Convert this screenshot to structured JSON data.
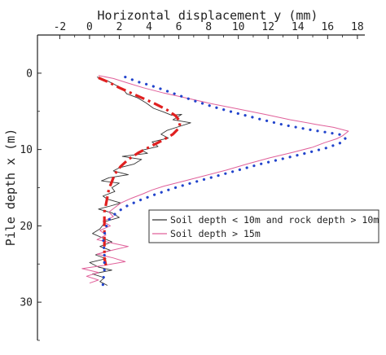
{
  "chart_data": {
    "type": "line",
    "xlabel": "Horizontal displacement y (mm)",
    "ylabel": "Pile depth x (m)",
    "xlim": [
      -3.5,
      18.5
    ],
    "ylim": [
      -5,
      35
    ],
    "x_ticks": [
      -2,
      0,
      2,
      4,
      6,
      8,
      10,
      12,
      14,
      16,
      18
    ],
    "y_ticks": [
      0,
      10,
      20,
      30
    ],
    "x_axis_position": "top",
    "y_axis_inverted": true,
    "legend_placement": "center-right",
    "series": [
      {
        "name": "Soil depth < 10m and rock depth > 10m",
        "style": "solid",
        "color": "#333333",
        "points": [
          [
            0.5,
            0.5
          ],
          [
            1.2,
            1.0
          ],
          [
            1.8,
            1.6
          ],
          [
            2.3,
            2.2
          ],
          [
            2.5,
            2.7
          ],
          [
            3.2,
            3.2
          ],
          [
            3.8,
            3.9
          ],
          [
            4.3,
            4.6
          ],
          [
            5.0,
            5.1
          ],
          [
            5.5,
            5.5
          ],
          [
            6.2,
            5.4
          ],
          [
            5.6,
            6.1
          ],
          [
            6.8,
            6.5
          ],
          [
            6.0,
            7.0
          ],
          [
            5.2,
            7.5
          ],
          [
            4.8,
            8.0
          ],
          [
            5.3,
            8.5
          ],
          [
            4.2,
            9.0
          ],
          [
            4.6,
            9.6
          ],
          [
            3.5,
            10.1
          ],
          [
            3.9,
            10.5
          ],
          [
            2.2,
            10.9
          ],
          [
            3.5,
            11.3
          ],
          [
            3.0,
            11.9
          ],
          [
            2.0,
            12.4
          ],
          [
            1.6,
            12.8
          ],
          [
            2.6,
            13.3
          ],
          [
            1.3,
            13.7
          ],
          [
            0.8,
            14.1
          ],
          [
            2.0,
            14.4
          ],
          [
            1.5,
            15.0
          ],
          [
            1.7,
            15.5
          ],
          [
            0.9,
            16.1
          ],
          [
            1.2,
            16.5
          ],
          [
            2.1,
            17.0
          ],
          [
            1.4,
            17.4
          ],
          [
            0.6,
            17.8
          ],
          [
            1.5,
            18.3
          ],
          [
            2.0,
            18.9
          ],
          [
            1.1,
            19.4
          ],
          [
            0.9,
            19.9
          ],
          [
            0.7,
            20.4
          ],
          [
            0.2,
            21.0
          ],
          [
            0.9,
            21.6
          ],
          [
            1.5,
            22.1
          ],
          [
            0.7,
            22.7
          ],
          [
            1.4,
            23.2
          ],
          [
            0.4,
            23.8
          ],
          [
            1.1,
            24.3
          ],
          [
            0.0,
            24.8
          ],
          [
            0.6,
            25.4
          ],
          [
            1.5,
            25.8
          ],
          [
            0.2,
            26.3
          ],
          [
            1.0,
            26.8
          ],
          [
            0.7,
            27.3
          ],
          [
            1.2,
            27.8
          ]
        ]
      },
      {
        "name": "Soil depth > 15m",
        "style": "solid",
        "color": "#e0609a",
        "points": [
          [
            0.6,
            0.3
          ],
          [
            1.6,
            0.7
          ],
          [
            2.6,
            1.3
          ],
          [
            3.6,
            1.9
          ],
          [
            5.0,
            2.6
          ],
          [
            6.6,
            3.3
          ],
          [
            8.2,
            4.0
          ],
          [
            10.0,
            4.7
          ],
          [
            11.8,
            5.4
          ],
          [
            13.5,
            6.1
          ],
          [
            15.2,
            6.7
          ],
          [
            16.4,
            7.1
          ],
          [
            17.4,
            7.6
          ],
          [
            17.0,
            8.2
          ],
          [
            16.6,
            8.6
          ],
          [
            15.8,
            9.1
          ],
          [
            15.0,
            9.7
          ],
          [
            13.6,
            10.4
          ],
          [
            12.1,
            11.1
          ],
          [
            10.6,
            11.9
          ],
          [
            9.2,
            12.7
          ],
          [
            7.8,
            13.4
          ],
          [
            6.4,
            14.1
          ],
          [
            5.0,
            14.8
          ],
          [
            4.2,
            15.3
          ],
          [
            3.6,
            15.8
          ],
          [
            2.8,
            16.4
          ],
          [
            2.1,
            17.0
          ],
          [
            1.7,
            17.6
          ],
          [
            1.3,
            18.2
          ],
          [
            1.6,
            18.8
          ],
          [
            0.9,
            19.4
          ],
          [
            1.4,
            20.0
          ],
          [
            0.7,
            20.6
          ],
          [
            1.1,
            21.2
          ],
          [
            0.5,
            21.8
          ],
          [
            1.6,
            22.3
          ],
          [
            2.6,
            22.7
          ],
          [
            1.5,
            23.2
          ],
          [
            0.5,
            23.7
          ],
          [
            1.6,
            24.2
          ],
          [
            2.4,
            24.7
          ],
          [
            0.9,
            25.2
          ],
          [
            -0.5,
            25.6
          ],
          [
            0.6,
            26.1
          ],
          [
            -0.2,
            26.6
          ],
          [
            0.6,
            27.1
          ],
          [
            0.0,
            27.5
          ]
        ]
      },
      {
        "name": "",
        "style": "dashdot",
        "color": "#e02020",
        "points": [
          [
            0.6,
            0.6
          ],
          [
            1.3,
            1.2
          ],
          [
            2.0,
            1.9
          ],
          [
            2.8,
            2.6
          ],
          [
            3.6,
            3.3
          ],
          [
            4.4,
            4.0
          ],
          [
            5.2,
            4.8
          ],
          [
            5.8,
            5.6
          ],
          [
            6.1,
            6.4
          ],
          [
            6.0,
            7.2
          ],
          [
            5.6,
            8.0
          ],
          [
            4.9,
            8.8
          ],
          [
            4.1,
            9.6
          ],
          [
            3.3,
            10.4
          ],
          [
            2.6,
            11.3
          ],
          [
            2.1,
            12.2
          ],
          [
            1.7,
            13.2
          ],
          [
            1.5,
            14.2
          ],
          [
            1.3,
            15.2
          ],
          [
            1.2,
            16.2
          ],
          [
            1.1,
            17.2
          ],
          [
            1.0,
            18.2
          ],
          [
            1.0,
            19.4
          ],
          [
            1.0,
            20.6
          ],
          [
            1.0,
            21.8
          ],
          [
            1.0,
            23.0
          ],
          [
            1.0,
            24.2
          ],
          [
            1.1,
            25.2
          ]
        ]
      },
      {
        "name": "",
        "style": "dotted",
        "color": "#2244cc",
        "points": [
          [
            2.4,
            0.5
          ],
          [
            3.2,
            1.1
          ],
          [
            4.1,
            1.6
          ],
          [
            5.0,
            2.2
          ],
          [
            6.0,
            2.9
          ],
          [
            7.0,
            3.6
          ],
          [
            8.3,
            4.4
          ],
          [
            9.8,
            5.2
          ],
          [
            11.4,
            6.0
          ],
          [
            13.1,
            6.8
          ],
          [
            14.8,
            7.4
          ],
          [
            16.1,
            7.8
          ],
          [
            17.0,
            8.1
          ],
          [
            17.2,
            8.6
          ],
          [
            16.8,
            9.2
          ],
          [
            15.9,
            9.8
          ],
          [
            14.5,
            10.5
          ],
          [
            13.0,
            11.2
          ],
          [
            11.5,
            11.9
          ],
          [
            10.0,
            12.7
          ],
          [
            8.5,
            13.5
          ],
          [
            7.0,
            14.3
          ],
          [
            5.6,
            15.1
          ],
          [
            4.4,
            15.9
          ],
          [
            3.3,
            16.7
          ],
          [
            2.4,
            17.5
          ],
          [
            1.8,
            18.3
          ],
          [
            1.3,
            19.2
          ],
          [
            1.1,
            20.2
          ],
          [
            1.0,
            21.2
          ],
          [
            0.9,
            22.2
          ],
          [
            1.0,
            23.2
          ],
          [
            1.0,
            24.2
          ],
          [
            1.0,
            25.2
          ],
          [
            1.0,
            26.2
          ],
          [
            0.9,
            27.2
          ],
          [
            0.9,
            28.0
          ]
        ]
      }
    ]
  }
}
